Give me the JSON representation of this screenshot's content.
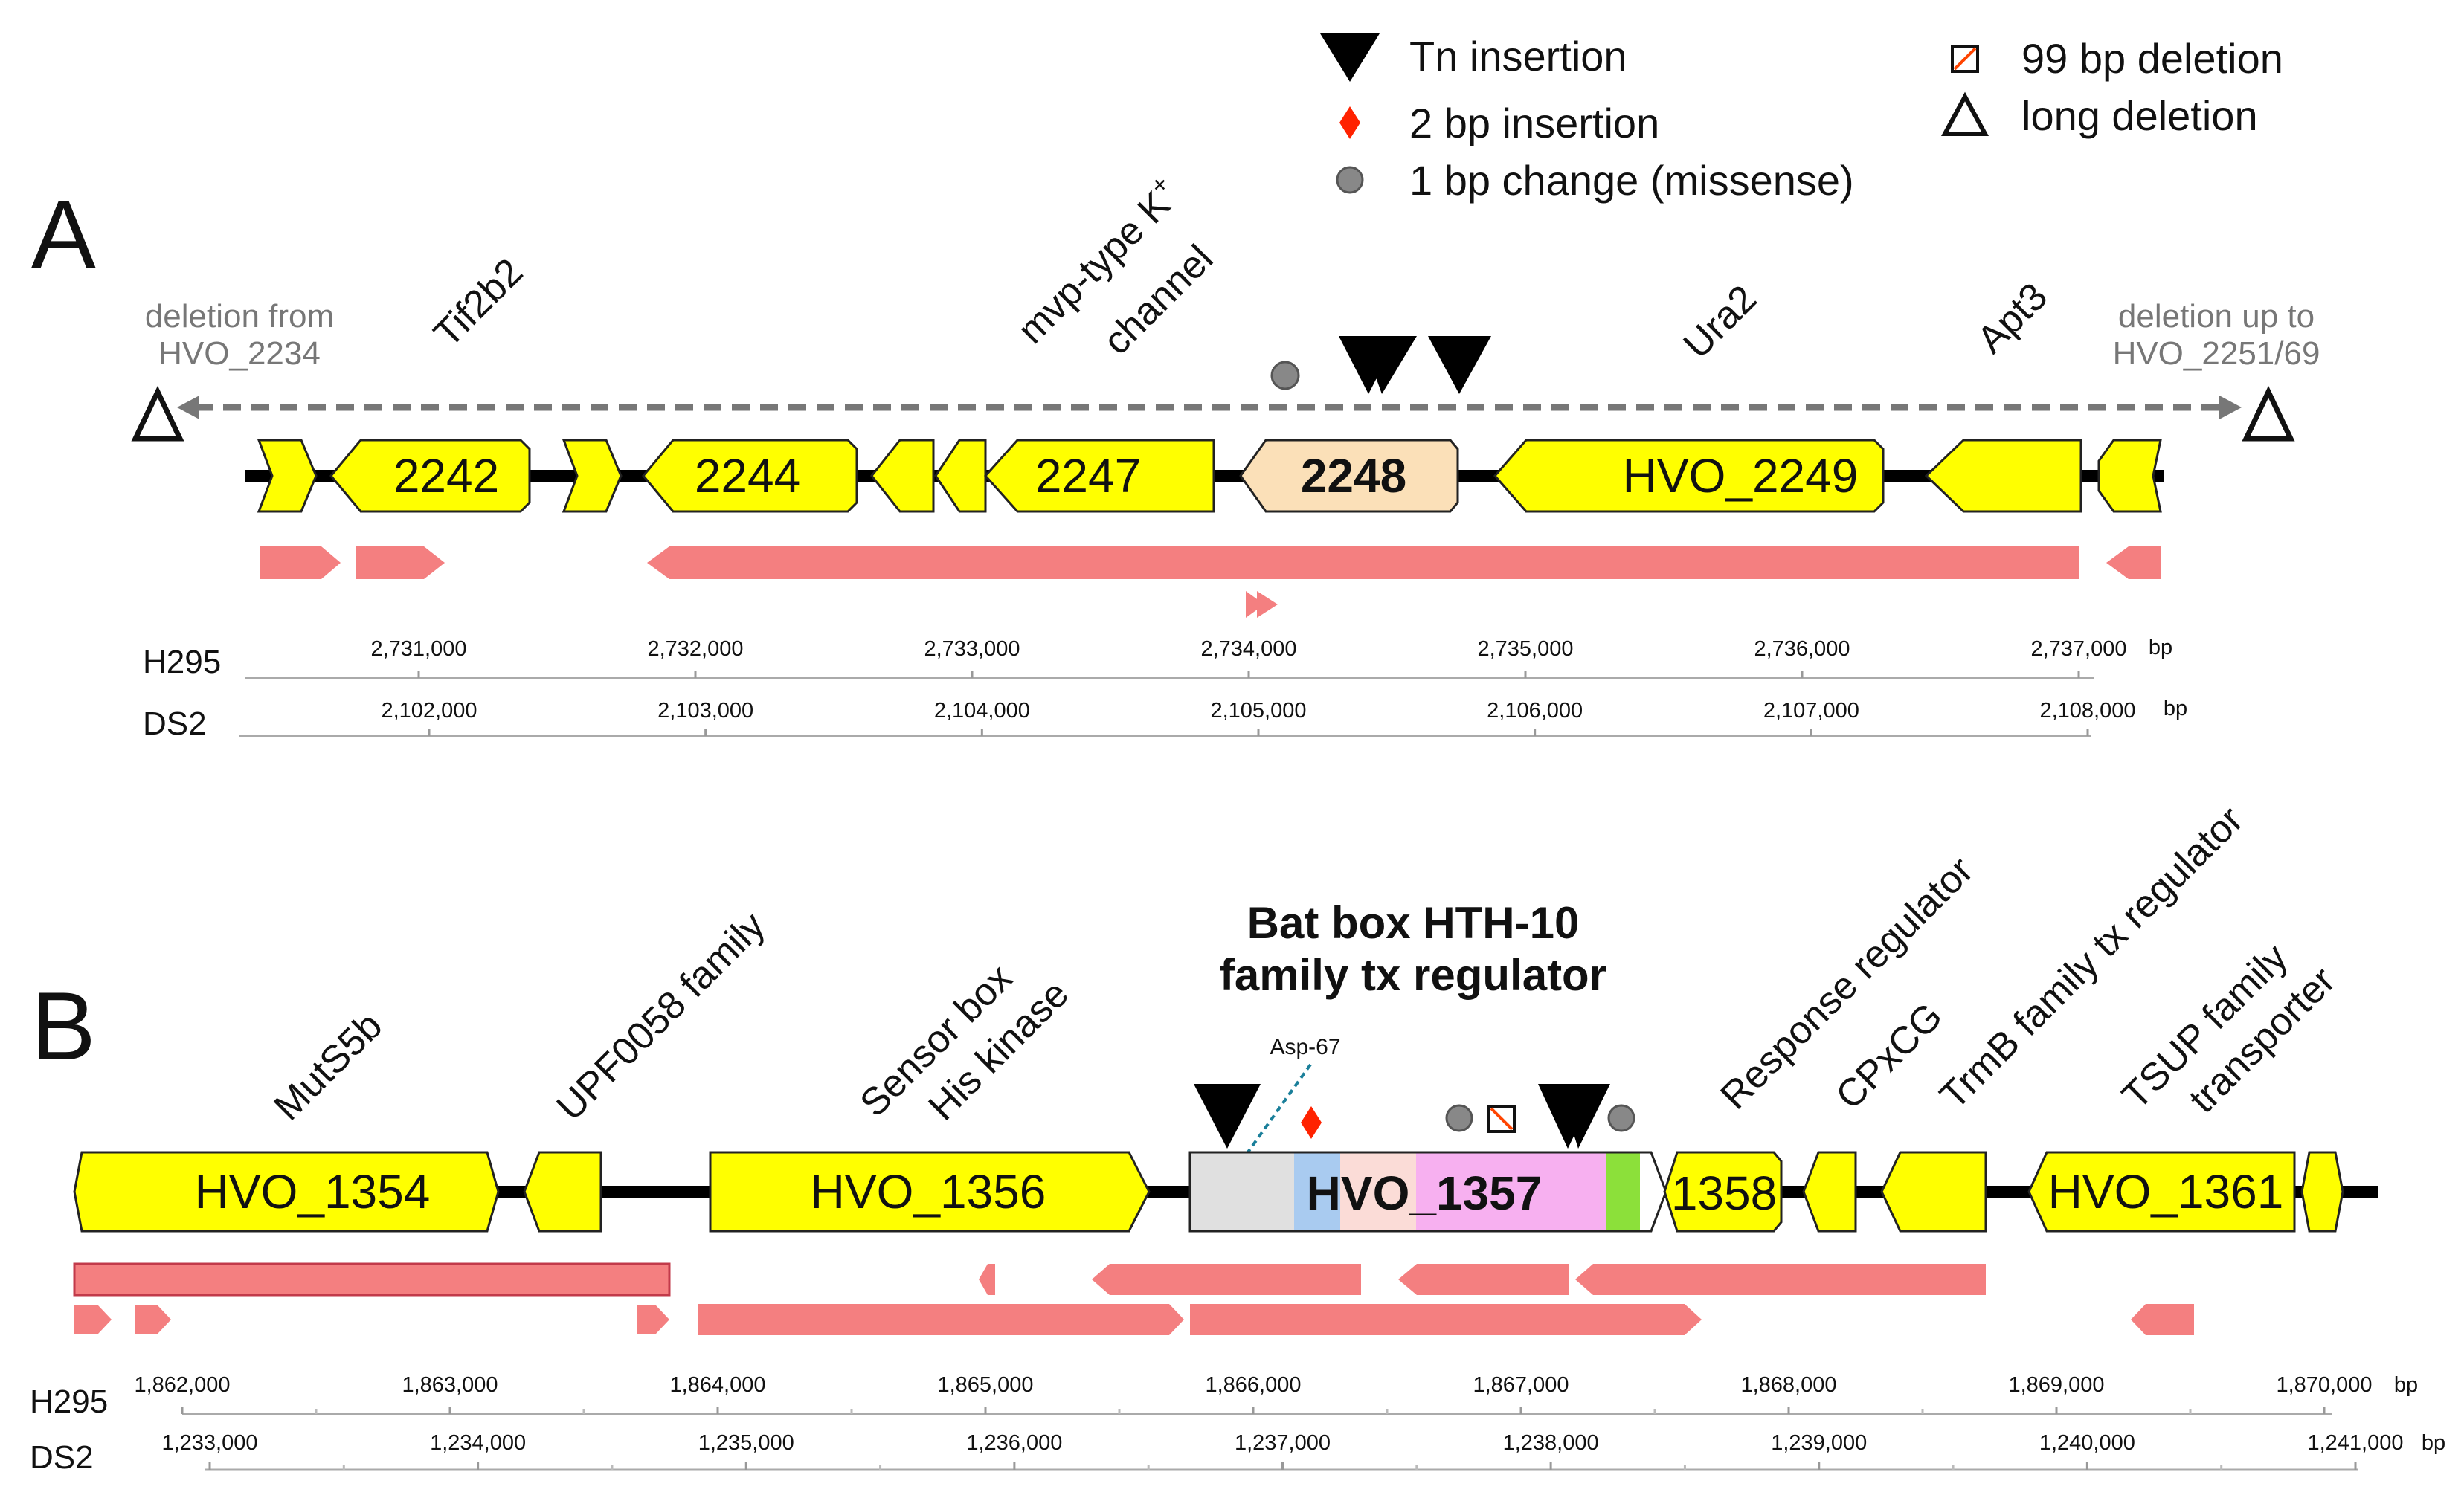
{
  "legend": {
    "tn_insertion": "Tn insertion",
    "bp2_insertion": "2 bp insertion",
    "bp1_change": "1 bp change (missense)",
    "bp99_deletion": "99 bp deletion",
    "long_deletion": "long deletion"
  },
  "colors": {
    "gene": "#ffff00",
    "gene_highlight_a": "#fbe0b8",
    "transcript": "#f47f80",
    "deletion_line": "#777777",
    "diamond": "#ff2200",
    "circle": "#888888"
  },
  "panelA": {
    "letter": "A",
    "deletion_left": [
      "deletion from",
      "HVO_2234"
    ],
    "deletion_right": [
      "deletion up to",
      "HVO_2251/69"
    ],
    "functions": {
      "tif2b2": "Tif2b2",
      "mvp_line1": "mvp-type K",
      "mvp_sup": "+",
      "mvp_line2": "channel",
      "ura2": "Ura2",
      "apt3": "Apt3"
    },
    "genes": [
      "2242",
      "2244",
      "2247",
      "2248",
      "HVO_2249"
    ],
    "axis_h295": {
      "name": "H295",
      "ticks": [
        "2,731,000",
        "2,732,000",
        "2,733,000",
        "2,734,000",
        "2,735,000",
        "2,736,000",
        "2,737,000"
      ],
      "unit": "bp"
    },
    "axis_ds2": {
      "name": "DS2",
      "ticks": [
        "2,102,000",
        "2,103,000",
        "2,104,000",
        "2,105,000",
        "2,106,000",
        "2,107,000",
        "2,108,000"
      ],
      "unit": "bp"
    }
  },
  "panelB": {
    "letter": "B",
    "title_line1": "Bat box HTH-10",
    "title_line2": "family tx regulator",
    "asp_label": "Asp-67",
    "functions": {
      "muts5b": "MutS5b",
      "upf0058": "UPF0058 family",
      "sensor_line1": "Sensor box",
      "sensor_line2": "His kinase",
      "response": "Response regulator",
      "cpxcg": "CPxCG",
      "trmb": "TrmB family tx regulator",
      "tsup_line1": "TSUP family",
      "tsup_line2": "transporter"
    },
    "genes": [
      "HVO_1354",
      "HVO_1356",
      "HVO_1357",
      "1358",
      "HVO_1361"
    ],
    "axis_h295": {
      "name": "H295",
      "ticks": [
        "1,862,000",
        "1,863,000",
        "1,864,000",
        "1,865,000",
        "1,866,000",
        "1,867,000",
        "1,868,000",
        "1,869,000",
        "1,870,000"
      ],
      "unit": "bp"
    },
    "axis_ds2": {
      "name": "DS2",
      "ticks": [
        "1,233,000",
        "1,234,000",
        "1,235,000",
        "1,236,000",
        "1,237,000",
        "1,238,000",
        "1,239,000",
        "1,240,000",
        "1,241,000"
      ],
      "unit": "bp"
    }
  }
}
